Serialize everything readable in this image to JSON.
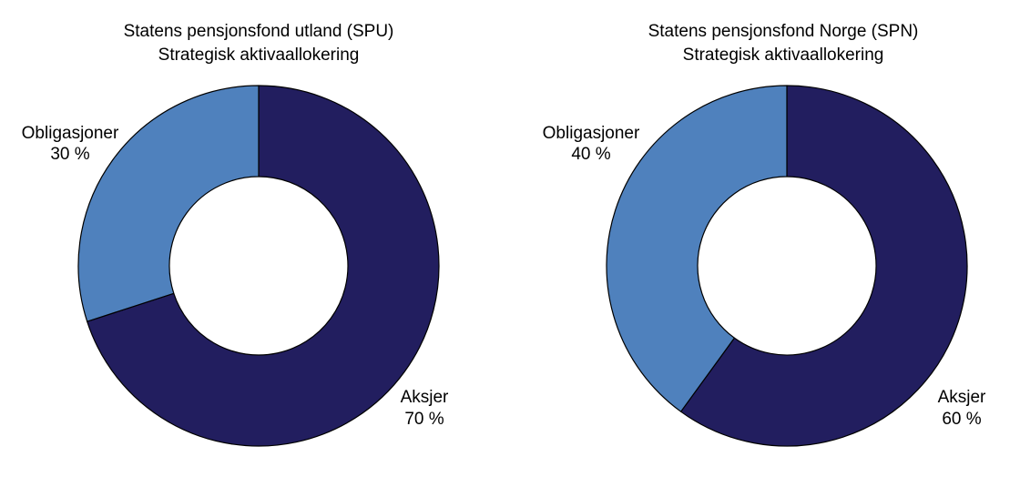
{
  "chart_data": [
    {
      "type": "pie",
      "title": "Statens pensjonsfond utland (SPU)",
      "subtitle": "Strategisk aktivaallokering",
      "slices": [
        {
          "label": "Aksjer",
          "value": 70,
          "value_label": "70 %",
          "color": "#221e5f"
        },
        {
          "label": "Obligasjoner",
          "value": 30,
          "value_label": "30 %",
          "color": "#4f81bd"
        }
      ]
    },
    {
      "type": "pie",
      "title": "Statens pensjonsfond Norge (SPN)",
      "subtitle": "Strategisk aktivaallokering",
      "slices": [
        {
          "label": "Aksjer",
          "value": 60,
          "value_label": "60 %",
          "color": "#221e5f"
        },
        {
          "label": "Obligasjoner",
          "value": 40,
          "value_label": "40 %",
          "color": "#4f81bd"
        }
      ]
    }
  ]
}
